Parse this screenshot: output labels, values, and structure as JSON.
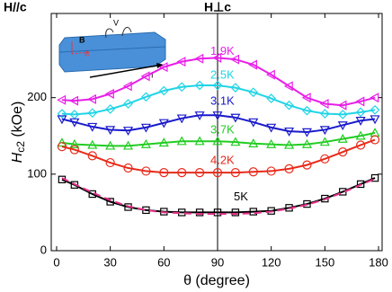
{
  "chart_data": {
    "type": "scatter",
    "top_labels": [
      "H//c",
      "H⊥c"
    ],
    "ylabel": [
      "H",
      "c2",
      " (kOe)"
    ],
    "xlabel": "θ (degree)",
    "inset_labels": [
      "B",
      "e",
      "V",
      "I"
    ],
    "x": [
      3,
      10,
      20,
      30,
      40,
      50,
      60,
      70,
      80,
      90,
      100,
      110,
      120,
      130,
      140,
      150,
      160,
      170,
      178
    ],
    "xlim": [
      -3,
      182
    ],
    "xticks": [
      0,
      30,
      60,
      90,
      120,
      150,
      180
    ],
    "ylim": [
      0,
      310
    ],
    "yticks": [
      0,
      100,
      200
    ],
    "series": [
      {
        "name": "1.9K",
        "color": "#e81ee8",
        "marker": "triangle-left",
        "values": [
          197,
          196,
          198,
          205,
          215,
          228,
          240,
          247,
          251,
          252,
          250,
          243,
          230,
          215,
          200,
          192,
          190,
          195,
          200
        ]
      },
      {
        "name": "2.5K",
        "color": "#20d4e6",
        "marker": "diamond",
        "values": [
          179,
          178,
          180,
          185,
          192,
          201,
          209,
          214,
          216,
          216,
          213,
          207,
          199,
          190,
          183,
          179,
          178,
          181,
          184
        ]
      },
      {
        "name": "3.1K",
        "color": "#1a1acc",
        "marker": "triangle-down",
        "values": [
          172,
          168,
          162,
          158,
          157,
          161,
          167,
          173,
          177,
          177,
          174,
          168,
          161,
          156,
          155,
          158,
          164,
          170,
          172
        ]
      },
      {
        "name": "3.7K",
        "color": "#22cc22",
        "marker": "triangle-up",
        "values": [
          141,
          139,
          138,
          137,
          137,
          139,
          141,
          143,
          143,
          143,
          142,
          140,
          139,
          138,
          139,
          142,
          146,
          150,
          154
        ]
      },
      {
        "name": "4.2K",
        "color": "#e82a1a",
        "marker": "circle",
        "values": [
          136,
          132,
          124,
          115,
          108,
          104,
          102,
          102,
          102,
          102,
          102,
          103,
          104,
          107,
          112,
          120,
          129,
          138,
          145
        ]
      },
      {
        "name": "5K",
        "color": "#000000",
        "marker": "square",
        "values": [
          93,
          86,
          74,
          64,
          57,
          53,
          51,
          50,
          50,
          50,
          50,
          51,
          52,
          56,
          61,
          68,
          77,
          87,
          95
        ]
      },
      {
        "color": "#e8308a",
        "line_style": "dashed",
        "values": [
          95,
          87,
          76,
          66,
          58,
          53,
          50,
          49,
          48,
          48,
          48,
          49,
          51,
          55,
          60,
          67,
          76,
          86,
          94
        ]
      }
    ]
  }
}
